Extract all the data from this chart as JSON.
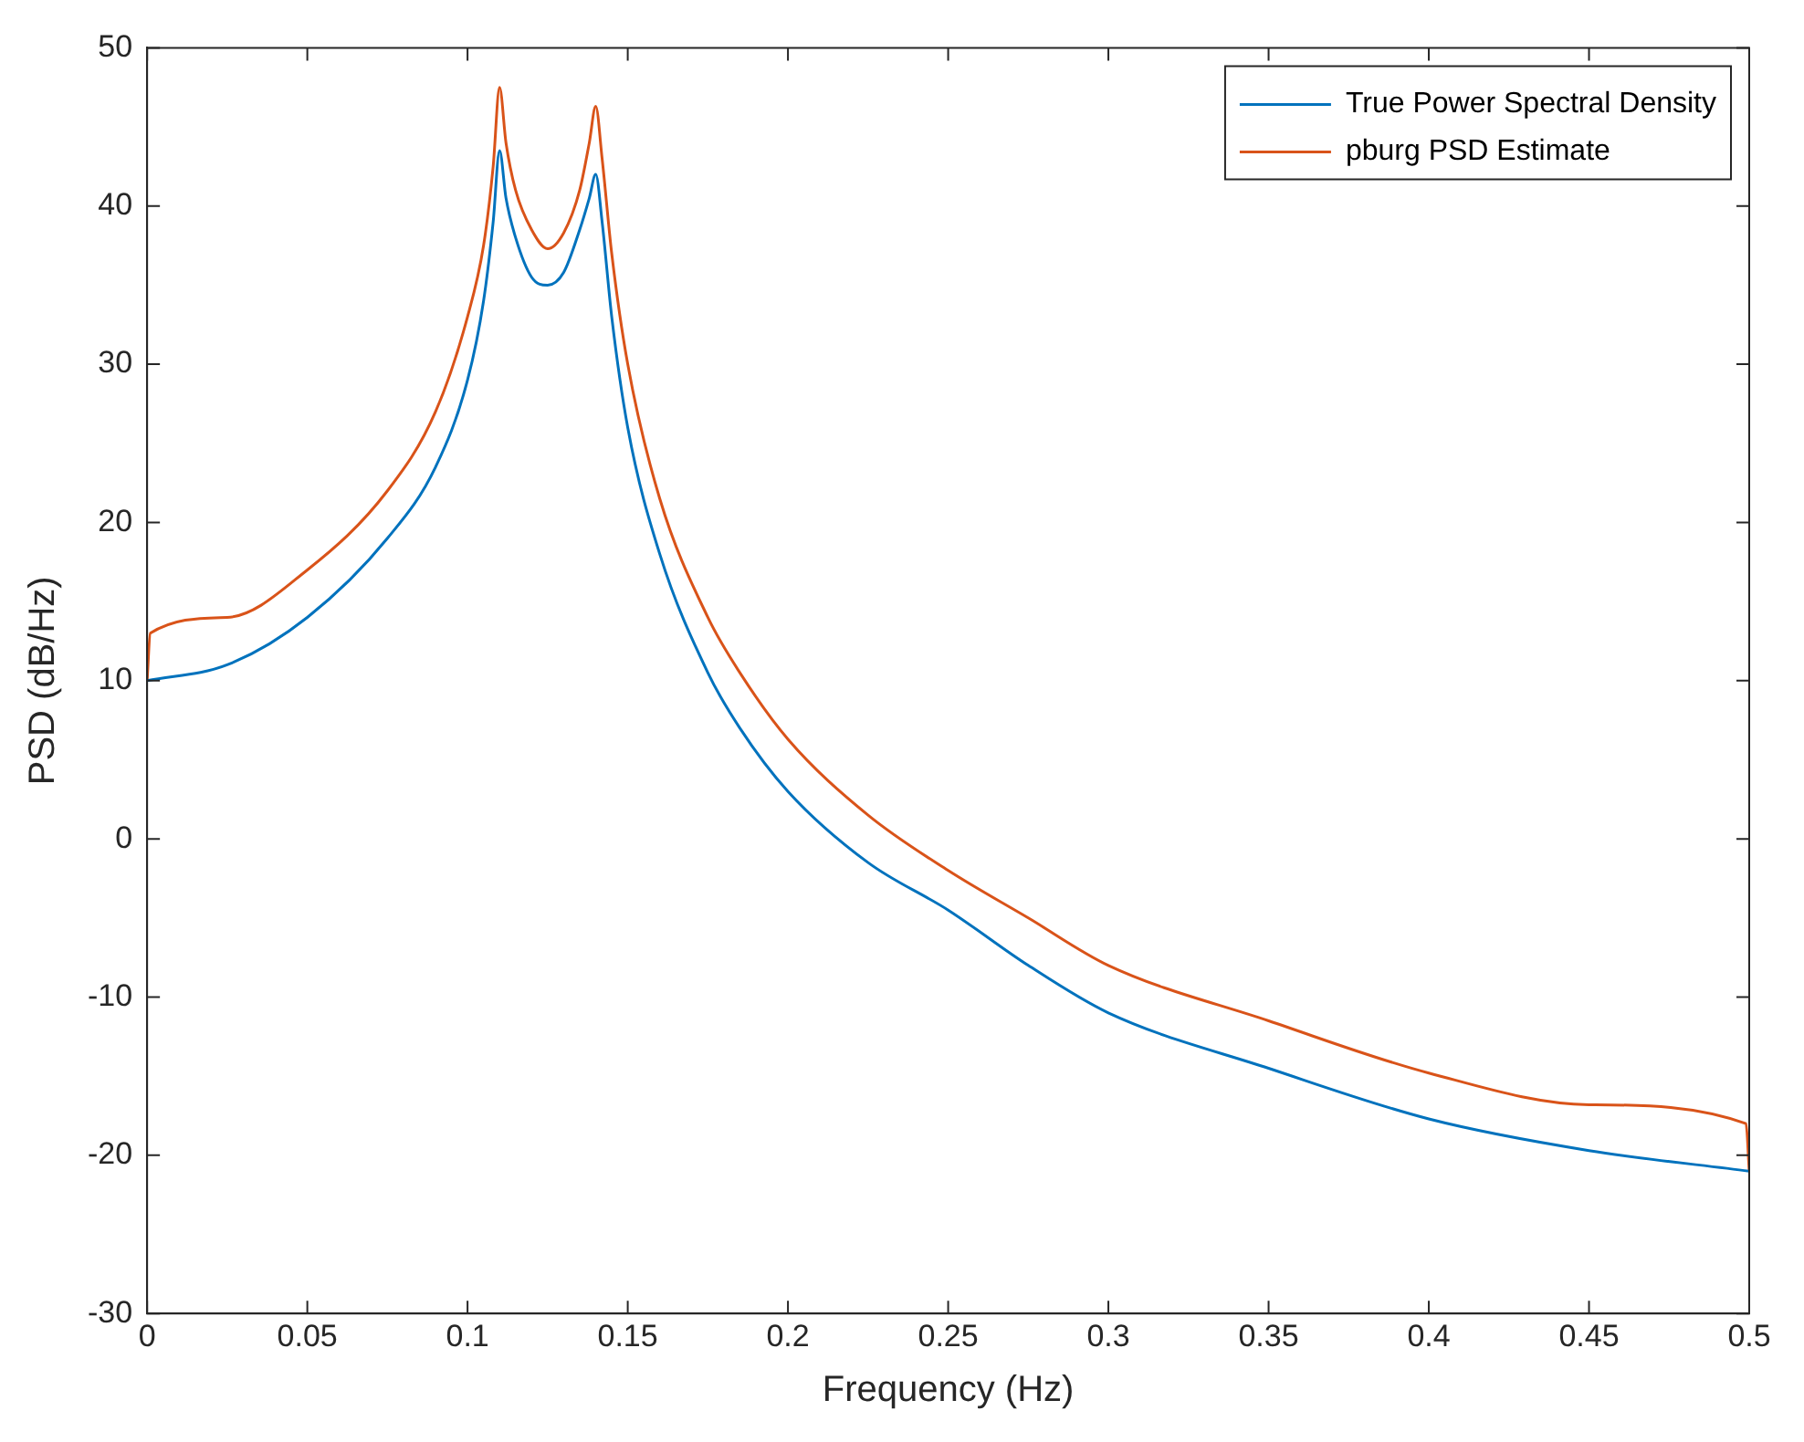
{
  "chart_data": {
    "type": "line",
    "xlabel": "Frequency (Hz)",
    "ylabel": "PSD (dB/Hz)",
    "xlim": [
      0,
      0.5
    ],
    "ylim": [
      -30,
      50
    ],
    "xticks": [
      0,
      0.05,
      0.1,
      0.15,
      0.2,
      0.25,
      0.3,
      0.35,
      0.4,
      0.45,
      0.5
    ],
    "yticks": [
      -30,
      -20,
      -10,
      0,
      10,
      20,
      30,
      40,
      50
    ],
    "grid": false,
    "legend": "top right",
    "marker": "none",
    "line_style": "solid",
    "series": [
      {
        "name": "True Power Spectral Density",
        "color": "#0072bd",
        "x": [
          0,
          0.025,
          0.05,
          0.075,
          0.09,
          0.1,
          0.105,
          0.108,
          0.11,
          0.112,
          0.115,
          0.12,
          0.125,
          0.13,
          0.135,
          0.138,
          0.14,
          0.142,
          0.145,
          0.15,
          0.16,
          0.175,
          0.185,
          0.2,
          0.225,
          0.25,
          0.275,
          0.3,
          0.35,
          0.4,
          0.45,
          0.5
        ],
        "values": [
          10,
          11,
          14,
          19,
          23.5,
          29,
          34,
          39,
          43.5,
          40.5,
          38,
          35.5,
          35,
          35.8,
          38.5,
          40.5,
          42,
          39,
          33,
          26,
          18,
          10.5,
          7,
          3,
          -1.5,
          -4.5,
          -8,
          -11,
          -14.5,
          -17.7,
          -19.7,
          -21
        ]
      },
      {
        "name": "pburg PSD Estimate",
        "color": "#d95319",
        "x": [
          0,
          0.001,
          0.025,
          0.05,
          0.075,
          0.09,
          0.1,
          0.105,
          0.108,
          0.11,
          0.112,
          0.115,
          0.12,
          0.125,
          0.13,
          0.135,
          0.138,
          0.14,
          0.142,
          0.145,
          0.15,
          0.16,
          0.175,
          0.185,
          0.2,
          0.225,
          0.25,
          0.275,
          0.3,
          0.35,
          0.4,
          0.45,
          0.499,
          0.5
        ],
        "values": [
          10,
          13,
          14,
          17,
          22,
          27,
          33,
          37.5,
          42.5,
          47.5,
          44,
          41,
          38.5,
          37.3,
          38.3,
          41,
          44,
          46.3,
          43,
          37,
          30,
          21.5,
          14,
          10.5,
          6.3,
          1.5,
          -2,
          -5,
          -8,
          -11.5,
          -14.8,
          -16.8,
          -18,
          -21
        ]
      }
    ]
  }
}
